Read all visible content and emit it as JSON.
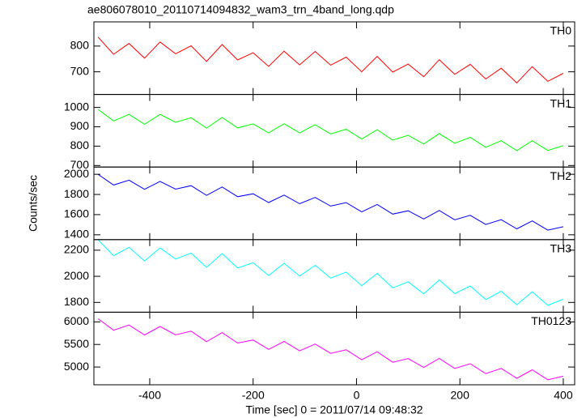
{
  "chart_data": {
    "type": "line",
    "title": "ae806078010_20110714094832_wam3_trn_4band_long.qdp",
    "xlabel": "Time [sec] 0 = 2011/07/14 09:48:32",
    "ylabel": "Counts/sec",
    "x": [
      -500,
      -470,
      -440,
      -410,
      -380,
      -350,
      -320,
      -290,
      -260,
      -230,
      -200,
      -170,
      -140,
      -110,
      -80,
      -50,
      -20,
      10,
      40,
      70,
      100,
      130,
      160,
      190,
      220,
      250,
      280,
      310,
      340,
      370,
      400
    ],
    "xlim": [
      -508,
      422
    ],
    "xticks": [
      -400,
      -200,
      0,
      200,
      400
    ],
    "panels": [
      {
        "name": "TH0",
        "color": "#ff0000",
        "ylim": [
          612,
          894
        ],
        "yticks": [
          700,
          800
        ],
        "values": [
          835,
          768,
          810,
          753,
          816,
          770,
          801,
          740,
          806,
          746,
          774,
          721,
          780,
          727,
          779,
          726,
          757,
          700,
          760,
          699,
          730,
          681,
          747,
          690,
          729,
          672,
          714,
          657,
          720,
          663,
          694
        ]
      },
      {
        "name": "TH1",
        "color": "#00ff00",
        "ylim": [
          692,
          1067
        ],
        "yticks": [
          700,
          800,
          900,
          1000
        ],
        "values": [
          990,
          930,
          964,
          913,
          964,
          923,
          947,
          893,
          948,
          894,
          915,
          868,
          916,
          868,
          911,
          863,
          887,
          837,
          885,
          831,
          856,
          811,
          865,
          815,
          845,
          794,
          828,
          777,
          828,
          778,
          802
        ]
      },
      {
        "name": "TH2",
        "color": "#0000ff",
        "ylim": [
          1352,
          2072
        ],
        "yticks": [
          1400,
          1600,
          1800,
          2000
        ],
        "values": [
          2000,
          1894,
          1942,
          1851,
          1930,
          1853,
          1887,
          1791,
          1874,
          1778,
          1807,
          1720,
          1794,
          1708,
          1771,
          1685,
          1719,
          1627,
          1701,
          1605,
          1638,
          1557,
          1641,
          1549,
          1593,
          1502,
          1550,
          1459,
          1538,
          1446,
          1480
        ]
      },
      {
        "name": "TH3",
        "color": "#00ffff",
        "ylim": [
          1725,
          2281
        ],
        "yticks": [
          1800,
          2000,
          2200
        ],
        "values": [
          2280,
          2158,
          2222,
          2118,
          2218,
          2132,
          2178,
          2068,
          2174,
          2064,
          2104,
          2006,
          2100,
          2002,
          2084,
          1986,
          2032,
          1928,
          2022,
          1912,
          1958,
          1866,
          1972,
          1868,
          1926,
          1822,
          1886,
          1782,
          1882,
          1778,
          1824
        ]
      },
      {
        "name": "TH0123",
        "color": "#ff00ff",
        "ylim": [
          4607,
          6214
        ],
        "yticks": [
          5000,
          5500,
          6000
        ],
        "values": [
          6070,
          5814,
          5930,
          5710,
          5898,
          5714,
          5794,
          5562,
          5762,
          5530,
          5598,
          5390,
          5566,
          5358,
          5510,
          5302,
          5382,
          5162,
          5338,
          5106,
          5186,
          4990,
          5190,
          4970,
          5074,
          4854,
          4970,
          4750,
          4938,
          4718,
          4798
        ]
      }
    ]
  }
}
